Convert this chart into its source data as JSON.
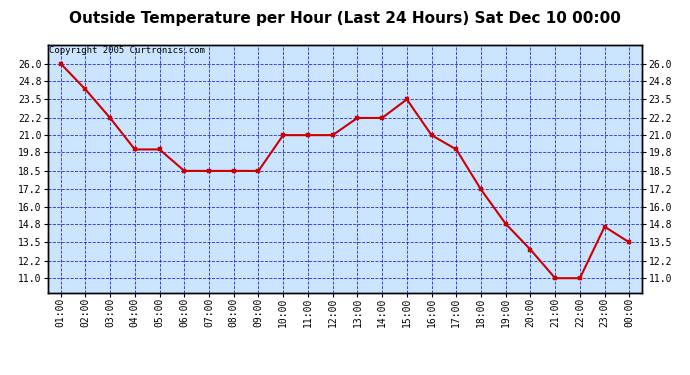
{
  "title": "Outside Temperature per Hour (Last 24 Hours) Sat Dec 10 00:00",
  "copyright": "Copyright 2005 Curtronics.com",
  "x_labels": [
    "01:00",
    "02:00",
    "03:00",
    "04:00",
    "05:00",
    "06:00",
    "07:00",
    "08:00",
    "09:00",
    "10:00",
    "11:00",
    "12:00",
    "13:00",
    "14:00",
    "15:00",
    "16:00",
    "17:00",
    "18:00",
    "19:00",
    "20:00",
    "21:00",
    "22:00",
    "23:00",
    "00:00"
  ],
  "y_values": [
    26.0,
    24.2,
    22.2,
    20.0,
    20.0,
    18.5,
    18.5,
    18.5,
    18.5,
    21.0,
    21.0,
    21.0,
    22.2,
    22.2,
    23.5,
    21.0,
    20.0,
    17.2,
    14.8,
    13.0,
    11.0,
    11.0,
    14.6,
    13.5
  ],
  "line_color": "#cc0000",
  "marker_color": "#cc0000",
  "plot_bg_color": "#cce5ff",
  "outer_bg_color": "#ffffff",
  "grid_color": "#0000cc",
  "title_fontsize": 11,
  "copyright_fontsize": 6.5,
  "ylim_min": 10.0,
  "ylim_max": 27.3,
  "yticks": [
    11.0,
    12.2,
    13.5,
    14.8,
    16.0,
    17.2,
    18.5,
    19.8,
    21.0,
    22.2,
    23.5,
    24.8,
    26.0
  ],
  "tick_fontsize": 7,
  "marker_size": 3.5,
  "line_width": 1.5
}
